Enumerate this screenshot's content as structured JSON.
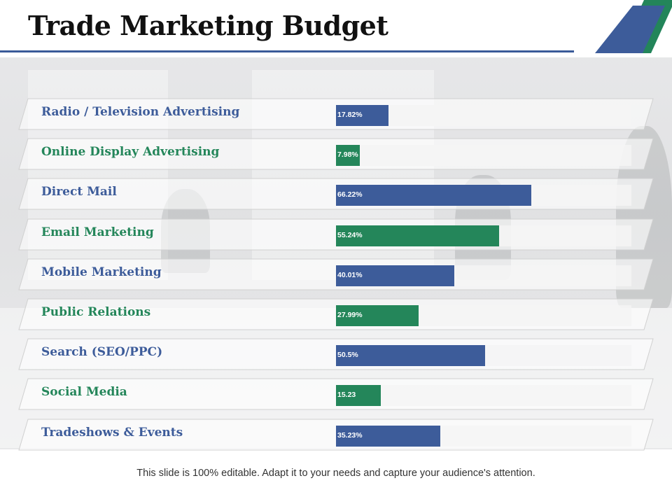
{
  "slide": {
    "title": "Trade Marketing Budget",
    "footer": "This slide is 100% editable. Adapt it to your needs and capture your audience's attention."
  },
  "colors": {
    "blue": "#3d5c9a",
    "green": "#24865a",
    "title_rule": "#3a5a98"
  },
  "chart_data": {
    "type": "bar",
    "orientation": "horizontal",
    "xlim": [
      0,
      100
    ],
    "categories": [
      "Radio / Television  Advertising",
      "Online Display Advertising",
      "Direct Mail",
      "Email Marketing",
      "Mobile Marketing",
      "Public Relations",
      "Search (SEO/PPC)",
      "Social Media",
      "Tradeshows & Events"
    ],
    "values": [
      17.82,
      7.98,
      66.22,
      55.24,
      40.01,
      27.99,
      50.5,
      15.23,
      35.23
    ],
    "labels": [
      "17.82%",
      "7.98%",
      "66.22%",
      "55.24%",
      "40.01%",
      "27.99%",
      "50.5%",
      "15.23",
      "35.23%"
    ],
    "bar_colors": [
      "#3d5c9a",
      "#24865a",
      "#3d5c9a",
      "#24865a",
      "#3d5c9a",
      "#24865a",
      "#3d5c9a",
      "#24865a",
      "#3d5c9a"
    ]
  }
}
